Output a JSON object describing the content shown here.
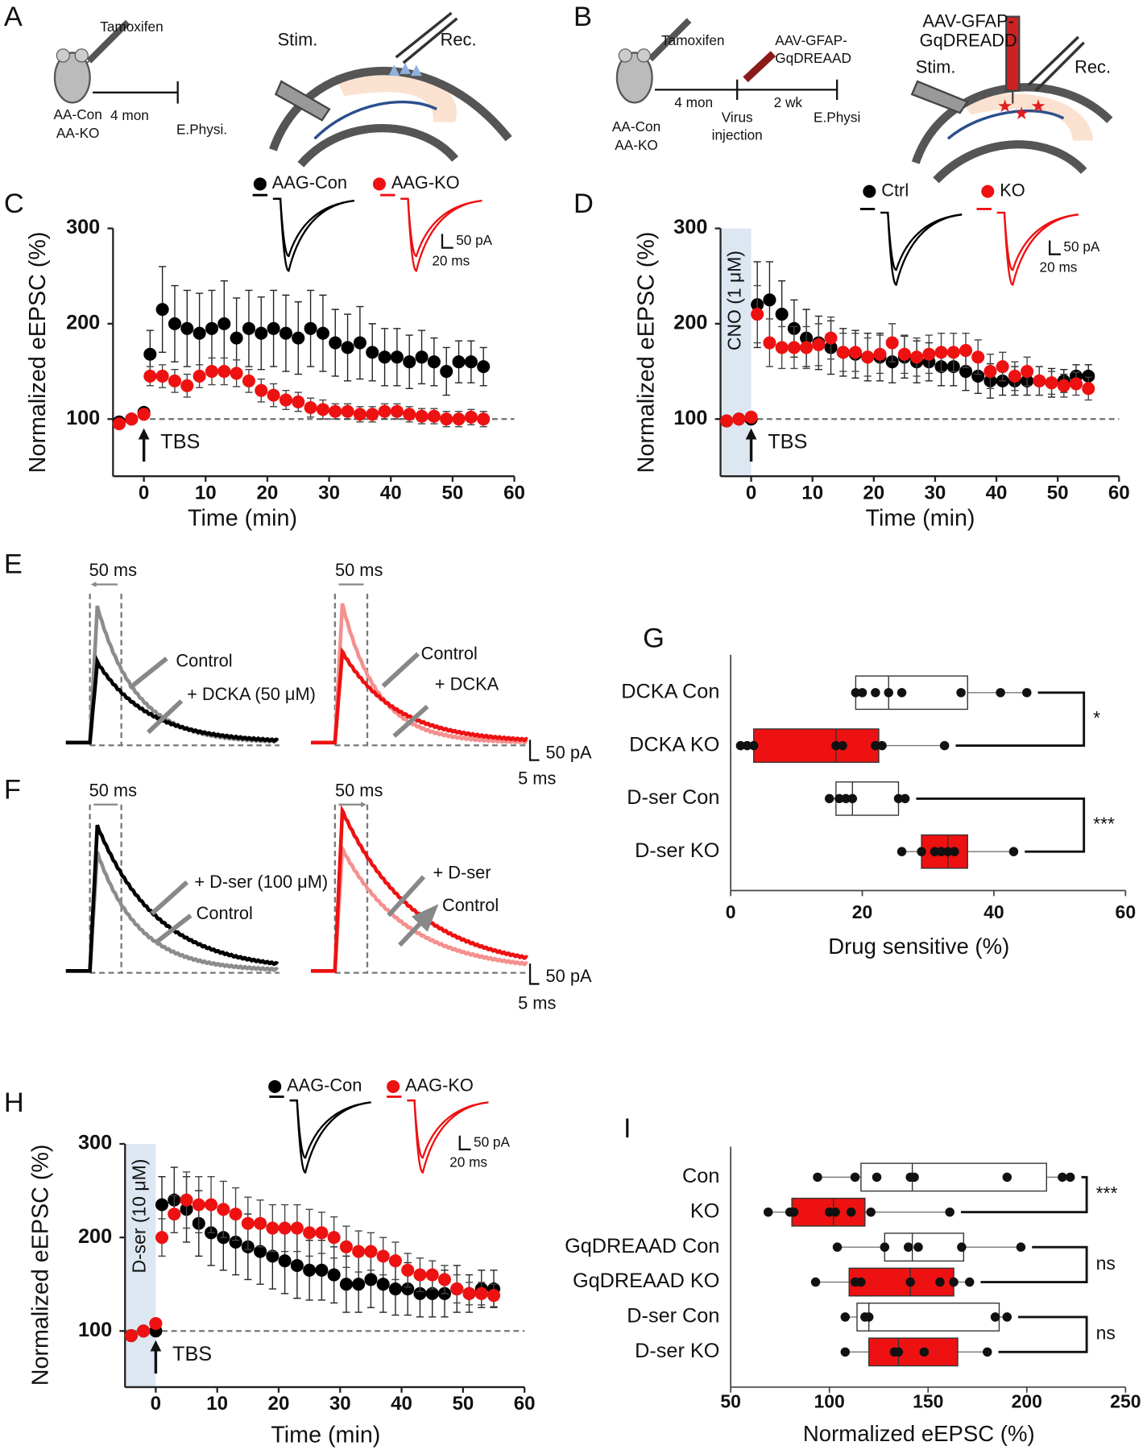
{
  "panel_labels": [
    "A",
    "B",
    "C",
    "D",
    "E",
    "F",
    "G",
    "H",
    "I"
  ],
  "schematic_a": {
    "drug": "Tamoxifen",
    "duration": "4 mon",
    "endpoint": "E.Physi.",
    "groups": [
      "AA-Con",
      "AA-KO"
    ],
    "stim": "Stim.",
    "rec": "Rec."
  },
  "schematic_b": {
    "drug": "Tamoxifen",
    "virus": [
      "AAV-GFAP-",
      "GqDREAAD"
    ],
    "duration_1": "4 mon",
    "duration_2": "2 wk",
    "injection": [
      "Virus",
      "injection"
    ],
    "endpoint": "E.Physi",
    "groups": [
      "AA-Con",
      "AA-KO"
    ],
    "virus_label": [
      "AAV-GFAP-",
      "GqDREADD"
    ],
    "stim": "Stim.",
    "rec": "Rec."
  },
  "traces_e": {
    "window": "50 ms",
    "left": [
      "Control",
      "+ DCKA (50 μM)"
    ],
    "right": [
      "Control",
      "+ DCKA"
    ],
    "scale": [
      "50 pA",
      "5 ms"
    ]
  },
  "traces_f": {
    "window": "50 ms",
    "left": [
      "+ D-ser (100 μM)",
      "Control"
    ],
    "right": [
      "+ D-ser",
      "Control"
    ],
    "scale": [
      "50 pA",
      "5 ms"
    ]
  },
  "chart_data": [
    {
      "type": "line",
      "x_label": "Time (min)",
      "y_label": "Normalized eEPSC (%)",
      "x": [
        -4,
        -2,
        0,
        1,
        3,
        5,
        7,
        9,
        11,
        13,
        15,
        17,
        19,
        21,
        23,
        25,
        27,
        29,
        31,
        33,
        35,
        37,
        39,
        41,
        43,
        45,
        47,
        49,
        51,
        53,
        55
      ],
      "series": [
        {
          "name": "AAG-Con",
          "color": "#000000",
          "values": [
            97,
            100,
            107,
            168,
            215,
            200,
            195,
            190,
            195,
            200,
            185,
            195,
            190,
            195,
            190,
            185,
            195,
            190,
            180,
            175,
            180,
            170,
            165,
            165,
            160,
            165,
            160,
            150,
            160,
            160,
            155
          ],
          "errors": [
            4,
            4,
            5,
            25,
            45,
            40,
            40,
            42,
            40,
            45,
            42,
            40,
            38,
            40,
            40,
            38,
            40,
            40,
            35,
            35,
            38,
            30,
            30,
            30,
            28,
            28,
            25,
            25,
            22,
            22,
            20
          ]
        },
        {
          "name": "AAG-KO",
          "color": "#ee1111",
          "values": [
            95,
            100,
            105,
            145,
            145,
            140,
            135,
            145,
            150,
            150,
            148,
            140,
            130,
            125,
            120,
            118,
            112,
            110,
            108,
            108,
            105,
            105,
            108,
            108,
            105,
            103,
            103,
            100,
            100,
            102,
            100
          ],
          "errors": [
            4,
            4,
            4,
            10,
            12,
            12,
            12,
            12,
            14,
            14,
            14,
            12,
            12,
            12,
            10,
            10,
            10,
            10,
            8,
            8,
            8,
            8,
            8,
            8,
            8,
            8,
            8,
            8,
            8,
            8,
            8
          ]
        }
      ],
      "xlim": [
        -5,
        60
      ],
      "xticks": [
        0,
        10,
        20,
        30,
        40,
        50,
        60
      ],
      "ylim": [
        40,
        300
      ],
      "yticks": [
        100,
        200,
        300
      ],
      "reference_line": 100,
      "arrow_label": "TBS",
      "arrow_x": 0,
      "scale_bar": [
        "50 pA",
        "20 ms"
      ]
    },
    {
      "type": "line",
      "x_label": "Time (min)",
      "y_label": "Normalized eEPSC (%)",
      "x": [
        -4,
        -2,
        0,
        1,
        3,
        5,
        7,
        9,
        11,
        13,
        15,
        17,
        19,
        21,
        23,
        25,
        27,
        29,
        31,
        33,
        35,
        37,
        39,
        41,
        43,
        45,
        47,
        49,
        51,
        53,
        55
      ],
      "series": [
        {
          "name": "Ctrl",
          "color": "#000000",
          "values": [
            98,
            100,
            100,
            220,
            225,
            210,
            195,
            185,
            180,
            175,
            170,
            168,
            165,
            165,
            160,
            165,
            160,
            160,
            155,
            155,
            150,
            145,
            140,
            140,
            140,
            140,
            140,
            138,
            140,
            145,
            145
          ],
          "errors": [
            3,
            3,
            3,
            45,
            40,
            35,
            30,
            30,
            28,
            28,
            25,
            25,
            25,
            25,
            22,
            22,
            22,
            20,
            20,
            20,
            20,
            18,
            18,
            15,
            15,
            15,
            15,
            15,
            12,
            12,
            12
          ]
        },
        {
          "name": "KO",
          "color": "#ee1111",
          "values": [
            98,
            100,
            102,
            210,
            180,
            175,
            175,
            175,
            178,
            185,
            170,
            170,
            165,
            168,
            180,
            168,
            165,
            168,
            170,
            170,
            172,
            165,
            150,
            155,
            145,
            150,
            140,
            138,
            135,
            137,
            132
          ],
          "errors": [
            3,
            3,
            3,
            30,
            25,
            22,
            22,
            22,
            22,
            22,
            20,
            20,
            20,
            20,
            20,
            20,
            20,
            20,
            20,
            20,
            18,
            18,
            18,
            15,
            15,
            15,
            15,
            12,
            12,
            12,
            12
          ]
        }
      ],
      "xlim": [
        -5,
        60
      ],
      "xticks": [
        0,
        10,
        20,
        30,
        40,
        50,
        60
      ],
      "ylim": [
        40,
        300
      ],
      "yticks": [
        100,
        200,
        300
      ],
      "reference_line": 100,
      "arrow_label": "TBS",
      "arrow_x": 0,
      "shade_label": "CNO (1 μM)",
      "shade_to": 0,
      "scale_bar": [
        "50 pA",
        "20 ms"
      ]
    },
    {
      "type": "box",
      "x_label": "Drug sensitive (%)",
      "categories": [
        "DCKA Con",
        "DCKA KO",
        "D-ser Con",
        "D-ser KO"
      ],
      "min": [
        19,
        1.5,
        15,
        26
      ],
      "q1": [
        19,
        3.5,
        16,
        29
      ],
      "median": [
        24,
        16,
        18.5,
        33
      ],
      "q3": [
        36,
        22.5,
        25.5,
        36
      ],
      "max": [
        45,
        32.5,
        26.5,
        43
      ],
      "points": [
        [
          19,
          20,
          22,
          24,
          26,
          35,
          41,
          45
        ],
        [
          1.5,
          2.5,
          3.5,
          16,
          17,
          22,
          23,
          32.5
        ],
        [
          15,
          16.5,
          17.5,
          18.5,
          25.5,
          26.5
        ],
        [
          26,
          29,
          31,
          32,
          33,
          34,
          43
        ]
      ],
      "colors": [
        "#ffffff",
        "#ee1111",
        "#ffffff",
        "#ee1111"
      ],
      "xlim": [
        0,
        60
      ],
      "xticks": [
        0,
        20,
        40,
        60
      ],
      "significance": [
        "*",
        "***"
      ]
    },
    {
      "type": "line",
      "x_label": "Time (min)",
      "y_label": "Normalized eEPSC (%)",
      "x": [
        -4,
        -2,
        0,
        1,
        3,
        5,
        7,
        9,
        11,
        13,
        15,
        17,
        19,
        21,
        23,
        25,
        27,
        29,
        31,
        33,
        35,
        37,
        39,
        41,
        43,
        45,
        47,
        49,
        51,
        53,
        55
      ],
      "series": [
        {
          "name": "AAG-Con",
          "color": "#000000",
          "values": [
            95,
            100,
            100,
            235,
            240,
            230,
            215,
            205,
            200,
            195,
            190,
            185,
            180,
            175,
            170,
            165,
            165,
            160,
            150,
            150,
            155,
            150,
            145,
            145,
            140,
            140,
            140,
            145,
            140,
            145,
            145
          ],
          "errors": [
            3,
            3,
            3,
            30,
            35,
            35,
            35,
            35,
            35,
            35,
            35,
            35,
            35,
            35,
            35,
            32,
            32,
            30,
            30,
            30,
            30,
            30,
            28,
            28,
            25,
            25,
            25,
            25,
            20,
            20,
            20
          ]
        },
        {
          "name": "AAG-KO",
          "color": "#ee1111",
          "values": [
            95,
            100,
            108,
            200,
            225,
            240,
            235,
            235,
            230,
            225,
            215,
            215,
            210,
            210,
            210,
            205,
            205,
            200,
            190,
            185,
            185,
            180,
            175,
            165,
            160,
            160,
            155,
            145,
            140,
            140,
            138
          ],
          "errors": [
            3,
            3,
            3,
            20,
            20,
            30,
            30,
            30,
            30,
            28,
            28,
            25,
            25,
            25,
            25,
            25,
            22,
            22,
            22,
            22,
            20,
            20,
            20,
            18,
            18,
            15,
            15,
            15,
            12,
            12,
            12
          ]
        }
      ],
      "xlim": [
        -5,
        60
      ],
      "xticks": [
        0,
        10,
        20,
        30,
        40,
        50,
        60
      ],
      "ylim": [
        40,
        300
      ],
      "yticks": [
        100,
        200,
        300
      ],
      "reference_line": 100,
      "arrow_label": "TBS",
      "arrow_x": 0,
      "shade_label": "D-ser (10 μM)",
      "shade_to": 0,
      "scale_bar": [
        "50 pA",
        "20 ms"
      ]
    },
    {
      "type": "box",
      "x_label": "Normalized eEPSC (%)",
      "categories": [
        "Con",
        "KO",
        "GqDREAAD Con",
        "GqDREAAD KO",
        "D-ser Con",
        "D-ser KO"
      ],
      "min": [
        94,
        69,
        104,
        93,
        108,
        108
      ],
      "q1": [
        116,
        81,
        128,
        110,
        114,
        120
      ],
      "median": [
        142,
        102,
        142,
        141,
        120,
        135
      ],
      "q3": [
        210,
        118,
        168,
        163,
        186,
        165
      ],
      "max": [
        222,
        161,
        197,
        171,
        190,
        180
      ],
      "points": [
        [
          94,
          113,
          124,
          141,
          143,
          190,
          218,
          222
        ],
        [
          69,
          80,
          82,
          100,
          103,
          111,
          121,
          161
        ],
        [
          104,
          128,
          140,
          145,
          167,
          197
        ],
        [
          93,
          113,
          116,
          141,
          156,
          163,
          171
        ],
        [
          108,
          118,
          120,
          184,
          190
        ],
        [
          108,
          133,
          135,
          148,
          180
        ]
      ],
      "colors": [
        "#ffffff",
        "#ee1111",
        "#ffffff",
        "#ee1111",
        "#ffffff",
        "#ee1111"
      ],
      "xlim": [
        50,
        250
      ],
      "xticks": [
        50,
        100,
        150,
        200,
        250
      ],
      "significance": [
        "***",
        "ns",
        "ns"
      ]
    }
  ]
}
